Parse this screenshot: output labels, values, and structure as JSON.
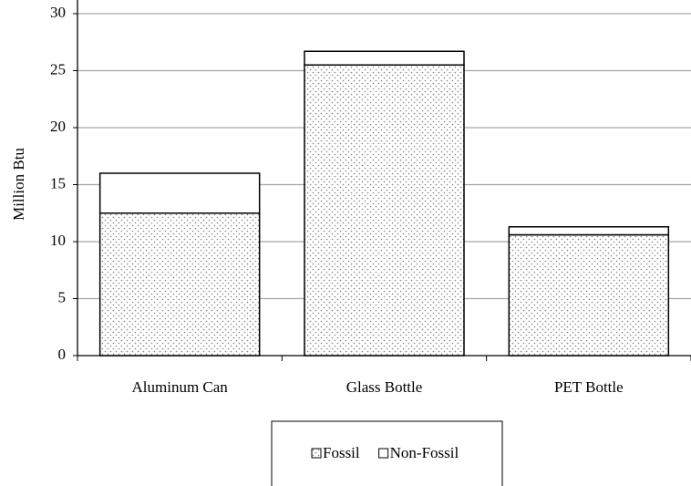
{
  "chart_data": {
    "type": "stacked_bar",
    "y_label": "Million Btu",
    "categories": [
      "Aluminum Can",
      "Glass Bottle",
      "PET Bottle"
    ],
    "series": [
      {
        "name": "Fossil",
        "color": "#808080",
        "values": [
          12.5,
          25.5,
          10.6
        ]
      },
      {
        "name": "Non-Fossil",
        "color": "#ffffff",
        "values": [
          3.5,
          1.2,
          0.7
        ]
      }
    ],
    "ylim": [
      0,
      30
    ],
    "yticks": [
      0,
      5,
      10,
      15,
      20,
      25,
      30
    ],
    "grid": true,
    "legend": "bottom"
  }
}
